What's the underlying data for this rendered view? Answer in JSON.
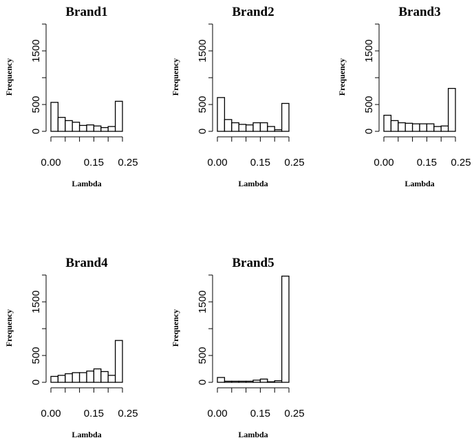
{
  "chart_data": [
    {
      "type": "histogram",
      "title": "Brand1",
      "xlabel": "Lambda",
      "ylabel": "Frequency",
      "bin_edges": [
        0.0,
        0.025,
        0.05,
        0.075,
        0.1,
        0.125,
        0.15,
        0.175,
        0.2,
        0.225,
        0.25
      ],
      "values": [
        540,
        260,
        200,
        170,
        110,
        120,
        100,
        70,
        90,
        560
      ],
      "xlim": [
        0,
        0.25
      ],
      "ylim": [
        0,
        2000
      ],
      "xticks": [
        "0.00",
        "0.15",
        "0.25"
      ],
      "yticks": [
        "0",
        "500",
        "1500"
      ]
    },
    {
      "type": "histogram",
      "title": "Brand2",
      "xlabel": "Lambda",
      "ylabel": "Frequency",
      "bin_edges": [
        0.0,
        0.025,
        0.05,
        0.075,
        0.1,
        0.125,
        0.15,
        0.175,
        0.2,
        0.225,
        0.25
      ],
      "values": [
        630,
        220,
        160,
        130,
        120,
        160,
        160,
        90,
        30,
        520
      ],
      "xlim": [
        0,
        0.25
      ],
      "ylim": [
        0,
        2000
      ],
      "xticks": [
        "0.00",
        "0.15",
        "0.25"
      ],
      "yticks": [
        "0",
        "500",
        "1500"
      ]
    },
    {
      "type": "histogram",
      "title": "Brand3",
      "xlabel": "Lambda",
      "ylabel": "Frequency",
      "bin_edges": [
        0.0,
        0.025,
        0.05,
        0.075,
        0.1,
        0.125,
        0.15,
        0.175,
        0.2,
        0.225,
        0.25
      ],
      "values": [
        300,
        200,
        160,
        150,
        140,
        140,
        140,
        90,
        100,
        800
      ],
      "xlim": [
        0,
        0.25
      ],
      "ylim": [
        0,
        2000
      ],
      "xticks": [
        "0.00",
        "0.15",
        "0.25"
      ],
      "yticks": [
        "0",
        "500",
        "1500"
      ]
    },
    {
      "type": "histogram",
      "title": "Brand4",
      "xlabel": "Lambda",
      "ylabel": "Frequency",
      "bin_edges": [
        0.0,
        0.025,
        0.05,
        0.075,
        0.1,
        0.125,
        0.15,
        0.175,
        0.2,
        0.225,
        0.25
      ],
      "values": [
        110,
        130,
        160,
        180,
        180,
        210,
        250,
        200,
        130,
        780
      ],
      "xlim": [
        0,
        0.25
      ],
      "ylim": [
        0,
        2000
      ],
      "xticks": [
        "0.00",
        "0.15",
        "0.25"
      ],
      "yticks": [
        "0",
        "500",
        "1500"
      ]
    },
    {
      "type": "histogram",
      "title": "Brand5",
      "xlabel": "Lambda",
      "ylabel": "Frequency",
      "bin_edges": [
        0.0,
        0.025,
        0.05,
        0.075,
        0.1,
        0.125,
        0.15,
        0.175,
        0.2,
        0.225,
        0.25
      ],
      "values": [
        90,
        20,
        20,
        20,
        20,
        40,
        60,
        10,
        30,
        1980
      ],
      "xlim": [
        0,
        0.25
      ],
      "ylim": [
        0,
        2000
      ],
      "xticks": [
        "0.00",
        "0.15",
        "0.25"
      ],
      "yticks": [
        "0",
        "500",
        "1500"
      ]
    }
  ]
}
